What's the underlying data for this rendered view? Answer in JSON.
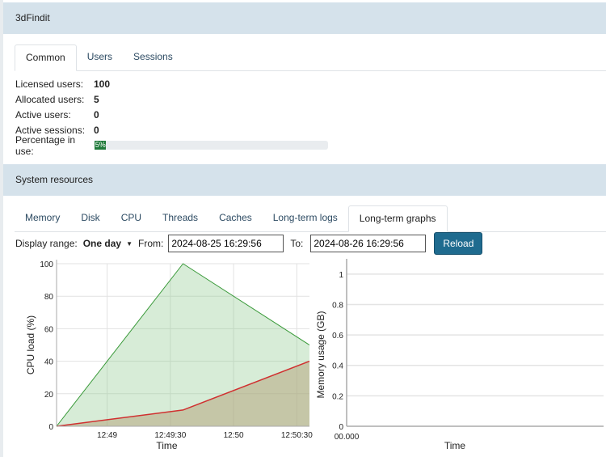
{
  "app": {
    "title": "3dFindit"
  },
  "user_tabs": [
    {
      "label": "Common",
      "active": true
    },
    {
      "label": "Users"
    },
    {
      "label": "Sessions"
    }
  ],
  "info": [
    {
      "label": "Licensed users:",
      "value": "100"
    },
    {
      "label": "Allocated users:",
      "value": "5"
    },
    {
      "label": "Active users:",
      "value": "0"
    },
    {
      "label": "Active sessions:",
      "value": "0"
    }
  ],
  "percentage": {
    "label": "Percentage in use:",
    "value": 5,
    "text": "5%"
  },
  "system": {
    "title": "System resources"
  },
  "res_tabs": [
    {
      "label": "Memory"
    },
    {
      "label": "Disk"
    },
    {
      "label": "CPU"
    },
    {
      "label": "Threads"
    },
    {
      "label": "Caches"
    },
    {
      "label": "Long-term logs"
    },
    {
      "label": "Long-term graphs",
      "active": true
    }
  ],
  "controls": {
    "range_label": "Display range:",
    "range_value": "One day",
    "from_label": "From:",
    "from_value": "2024-08-25 16:29:56",
    "to_label": "To:",
    "to_value": "2024-08-26 16:29:56",
    "reload": "Reload"
  },
  "chart_data": [
    {
      "type": "area",
      "xlabel": "Time",
      "ylabel": "CPU load (%)",
      "ylim": [
        0,
        100
      ],
      "yticks": [
        "0",
        "20",
        "40",
        "60",
        "80",
        "100"
      ],
      "xticks": [
        "12:49",
        "12:49:30",
        "12:50",
        "12:50:30"
      ],
      "x": [
        "12:48:36",
        "12:49:36",
        "12:50:36"
      ],
      "series": [
        {
          "values": [
            0,
            100,
            50
          ],
          "color": "#3a9a3a"
        },
        {
          "values": [
            0,
            10,
            40
          ],
          "color": "#d03030"
        }
      ],
      "grid": true
    },
    {
      "type": "line",
      "xlabel": "Time",
      "ylabel": "Memory usage (GB)",
      "ylim": [
        0,
        1.1
      ],
      "yticks": [
        "0",
        "0.2",
        "0.4",
        "0.6",
        "0.8",
        "1"
      ],
      "xticks": [
        "00.000"
      ],
      "series": [],
      "grid": true
    }
  ]
}
